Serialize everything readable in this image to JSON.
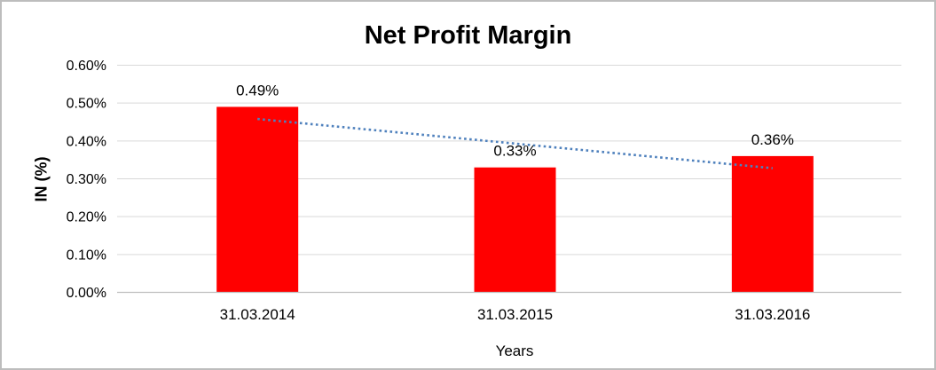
{
  "chart_data": {
    "type": "bar",
    "title": "Net Profit Margin",
    "xlabel": "Years",
    "ylabel": "IN (%)",
    "categories": [
      "31.03.2014",
      "31.03.2015",
      "31.03.2016"
    ],
    "values": [
      0.49,
      0.33,
      0.36
    ],
    "data_labels": [
      "0.49%",
      "0.33%",
      "0.36%"
    ],
    "ylim": [
      0,
      0.6
    ],
    "yticks": [
      0.0,
      0.1,
      0.2,
      0.3,
      0.4,
      0.5,
      0.6
    ],
    "ytick_labels": [
      "0.00%",
      "0.10%",
      "0.20%",
      "0.30%",
      "0.40%",
      "0.50%",
      "0.60%"
    ],
    "grid": true,
    "legend": false,
    "bar_color": "#ff0000",
    "gridline_color": "#d9d9d9",
    "axis_line_color": "#bfbfbf",
    "trendline": {
      "type": "linear",
      "style": "dotted",
      "color": "#4f81bd",
      "start_value": 0.458,
      "end_value": 0.328
    }
  }
}
